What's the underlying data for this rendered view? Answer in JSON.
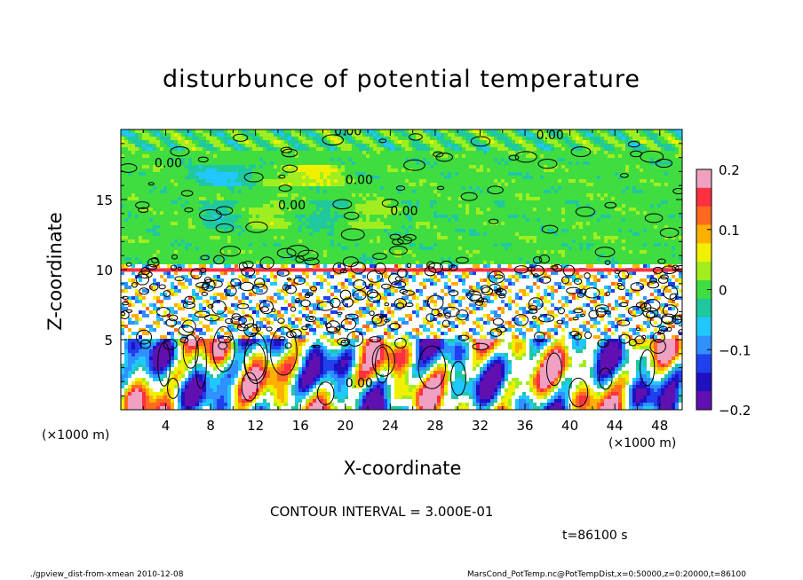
{
  "chart_data": {
    "type": "heatmap",
    "title": "disturbunce of potential temperature",
    "xlabel": "X-coordinate",
    "ylabel": "Z-coordinate",
    "x_unit": "(×1000 m)",
    "y_unit": "(×1000 m)",
    "xlim": [
      0,
      50
    ],
    "ylim": [
      0,
      20
    ],
    "x_ticks": [
      "4",
      "8",
      "12",
      "16",
      "20",
      "24",
      "28",
      "32",
      "36",
      "40",
      "44",
      "48"
    ],
    "y_ticks": [
      "5",
      "10",
      "15"
    ],
    "colorbar": {
      "range": [
        -0.2,
        0.2
      ],
      "tick_labels": [
        "0.2",
        "0.1",
        "0",
        "−0.1",
        "−0.2"
      ],
      "colors": [
        "#f0a0c0",
        "#ff3040",
        "#ff6a20",
        "#ffb000",
        "#f0f000",
        "#a0ee20",
        "#40dd40",
        "#20c8a0",
        "#20c8ff",
        "#3090ff",
        "#2040f0",
        "#2010c0",
        "#6010b0"
      ]
    },
    "contour_labels": [
      "0.00"
    ],
    "contour_interval": "CONTOUR INTERVAL = 3.000E-01",
    "time": "t=86100 s",
    "footer_left": "./gpview_dist-from-xmean  2010-12-08",
    "footer_right": "MarsCond_PotTemp.nc@PotTempDist,x=0:50000,z=0:20000,t=86100"
  }
}
